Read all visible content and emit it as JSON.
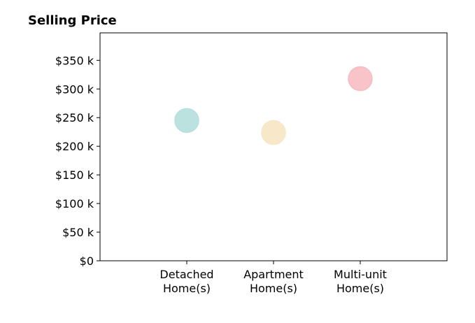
{
  "chart_data": {
    "type": "scatter",
    "title": "Selling Price",
    "xlabel": "",
    "ylabel": "",
    "categories": [
      [
        "Detached",
        "Home(s)"
      ],
      [
        "Apartment",
        "Home(s)"
      ],
      [
        "Multi-unit",
        "Home(s)"
      ]
    ],
    "values": [
      245000,
      224000,
      318000
    ],
    "colors": [
      "#b5dfdc",
      "#f7e6c4",
      "#f7bcc3"
    ],
    "yticks": [
      0,
      50000,
      100000,
      150000,
      200000,
      250000,
      300000,
      350000
    ],
    "ytick_labels": [
      "$0",
      "$50 k",
      "$100 k",
      "$150 k",
      "$200 k",
      "$250 k",
      "$300 k",
      "$350 k"
    ],
    "ylim": [
      0,
      398000
    ],
    "xlim": [
      -1,
      3
    ],
    "grid": false,
    "legend": "none"
  }
}
